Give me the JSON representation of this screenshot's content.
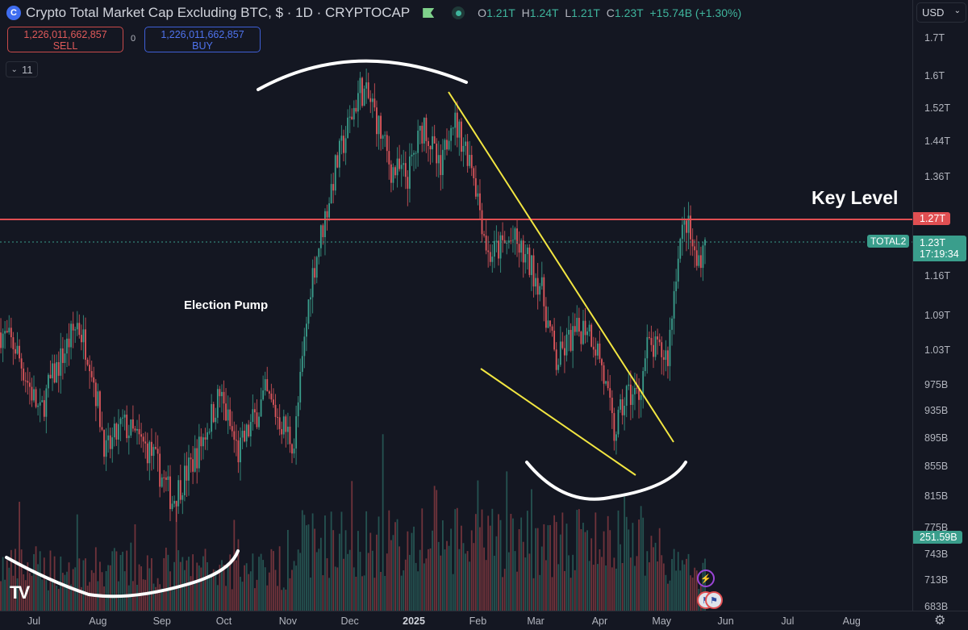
{
  "header": {
    "title": "Crypto Total Market Cap Excluding BTC, $ · 1D · CRYPTOCAP",
    "logo_letter": "C",
    "ohlc": {
      "o_label": "O",
      "o": "1.21T",
      "h_label": "H",
      "h": "1.24T",
      "l_label": "L",
      "l": "1.21T",
      "c_label": "C",
      "c": "1.23T",
      "change": "+15.74B (+1.30%)"
    }
  },
  "trade": {
    "sell_price": "1,226,011,662,857",
    "sell_label": "SELL",
    "spread": "0",
    "buy_price": "1,226,011,662,857",
    "buy_label": "BUY"
  },
  "indicators": {
    "collapse_icon": "chevron-down",
    "count": "11"
  },
  "annotations": {
    "key_level": "Key Level",
    "election_pump": "Election Pump"
  },
  "price_axis": {
    "currency": "USD",
    "ticks": [
      "1.7T",
      "1.6T",
      "1.52T",
      "1.44T",
      "1.36T",
      "1.16T",
      "1.09T",
      "1.03T",
      "975B",
      "935B",
      "895B",
      "855B",
      "815B",
      "775B",
      "743B",
      "713B",
      "683B"
    ],
    "key_level_tag": "1.27T",
    "symbol_tag": "TOTAL2",
    "last_price_tag": "1.23T",
    "countdown": "17:19:34",
    "volume_tag": "251.59B"
  },
  "time_axis": {
    "ticks": [
      "Jul",
      "Aug",
      "Sep",
      "Oct",
      "Nov",
      "Dec",
      "2025",
      "Feb",
      "Mar",
      "Apr",
      "May",
      "Jun",
      "Jul",
      "Aug"
    ]
  },
  "colors": {
    "up": "#3a9e8c",
    "down": "#e0575c",
    "key_level": "#e04f52",
    "trendline": "#f2e641",
    "drawing": "#ffffff",
    "background": "#141722"
  },
  "chart_data": {
    "type": "candlestick",
    "scale": "log",
    "interval": "1D",
    "ylim": [
      "683B",
      "1.7T"
    ],
    "grid": false,
    "key_level": 1270,
    "last_close": 1230,
    "price_unit": "B USD",
    "price_path": [
      [
        "2024-06-15",
        1060
      ],
      [
        "2024-06-22",
        1035
      ],
      [
        "2024-07-04",
        928
      ],
      [
        "2024-07-08",
        971
      ],
      [
        "2024-07-22",
        1076
      ],
      [
        "2024-07-28",
        1021
      ],
      [
        "2024-08-05",
        873
      ],
      [
        "2024-08-13",
        915
      ],
      [
        "2024-08-27",
        873
      ],
      [
        "2024-09-06",
        810
      ],
      [
        "2024-09-18",
        873
      ],
      [
        "2024-09-29",
        960
      ],
      [
        "2024-10-08",
        873
      ],
      [
        "2024-10-21",
        960
      ],
      [
        "2024-11-04",
        886
      ],
      [
        "2024-11-12",
        1148
      ],
      [
        "2024-11-24",
        1378
      ],
      [
        "2024-12-06",
        1568
      ],
      [
        "2024-12-12",
        1525
      ],
      [
        "2024-12-21",
        1378
      ],
      [
        "2024-12-29",
        1362
      ],
      [
        "2025-01-06",
        1486
      ],
      [
        "2025-01-14",
        1362
      ],
      [
        "2025-01-19",
        1505
      ],
      [
        "2025-01-29",
        1396
      ],
      [
        "2025-02-06",
        1199
      ],
      [
        "2025-02-18",
        1230
      ],
      [
        "2025-02-26",
        1181
      ],
      [
        "2025-03-03",
        1148
      ],
      [
        "2025-03-11",
        1008
      ],
      [
        "2025-03-17",
        1046
      ],
      [
        "2025-03-26",
        1076
      ],
      [
        "2025-04-01",
        1021
      ],
      [
        "2025-04-08",
        900
      ],
      [
        "2025-04-14",
        960
      ],
      [
        "2025-04-20",
        960
      ],
      [
        "2025-04-24",
        1035
      ],
      [
        "2025-05-04",
        1021
      ],
      [
        "2025-05-09",
        1214
      ],
      [
        "2025-05-13",
        1267
      ],
      [
        "2025-05-18",
        1181
      ],
      [
        "2025-05-22",
        1230
      ]
    ],
    "last_volume": "251.59B"
  }
}
